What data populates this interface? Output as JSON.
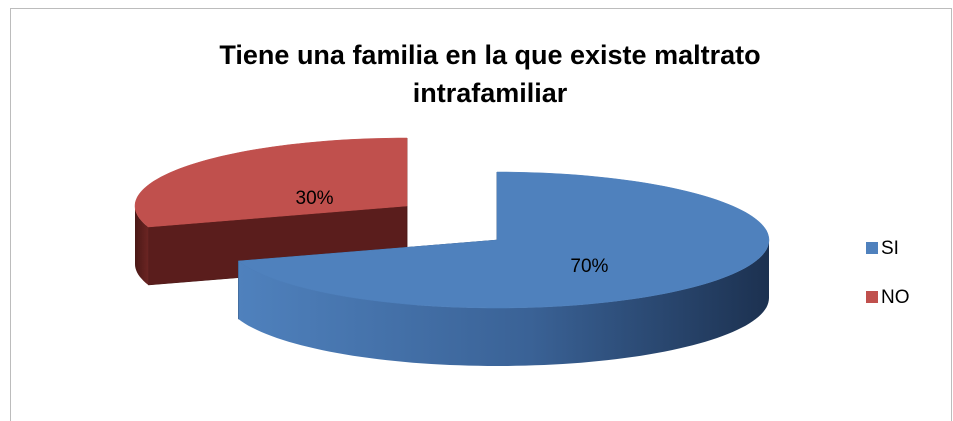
{
  "chart_data": {
    "type": "pie",
    "title": "Tiene una familia en la que existe  maltrato intrafamiliar",
    "categories": [
      "SI",
      "NO"
    ],
    "values": [
      70,
      30
    ],
    "value_labels": [
      "70%",
      "30%"
    ],
    "colors": [
      "#4f81bd",
      "#c0504d"
    ],
    "legend": "right",
    "exploded": [
      "NO"
    ]
  }
}
